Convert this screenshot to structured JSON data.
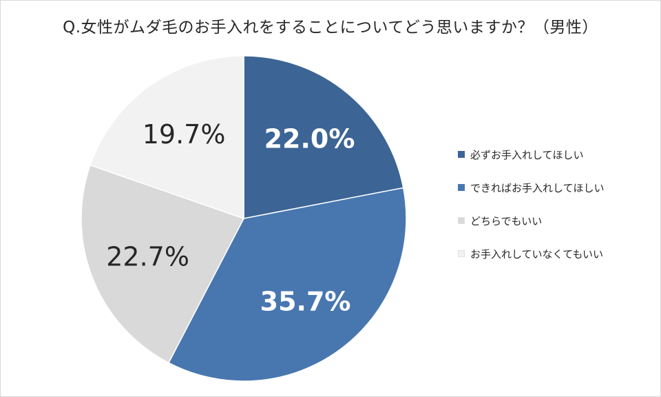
{
  "chart_data": {
    "type": "pie",
    "title": "Q.女性がムダ毛のお手入れをすることについてどう思いますか？（男性）",
    "categories": [
      "必ずお手入れしてほしい",
      "できればお手入れしてほしい",
      "どちらでもいい",
      "お手入れしていなくてもいい"
    ],
    "values": [
      22.0,
      35.7,
      22.7,
      19.7
    ],
    "labels": [
      "22.0%",
      "35.7%",
      "22.7%",
      "19.7%"
    ],
    "colors": [
      "#3c6495",
      "#4877b0",
      "#d9d9d9",
      "#f2f2f2"
    ],
    "label_colors": [
      "#ffffff",
      "#ffffff",
      "#262626",
      "#262626"
    ],
    "label_bold": [
      true,
      true,
      false,
      false
    ],
    "start_angle_deg": 0,
    "direction": "clockwise",
    "legend_position": "right"
  }
}
